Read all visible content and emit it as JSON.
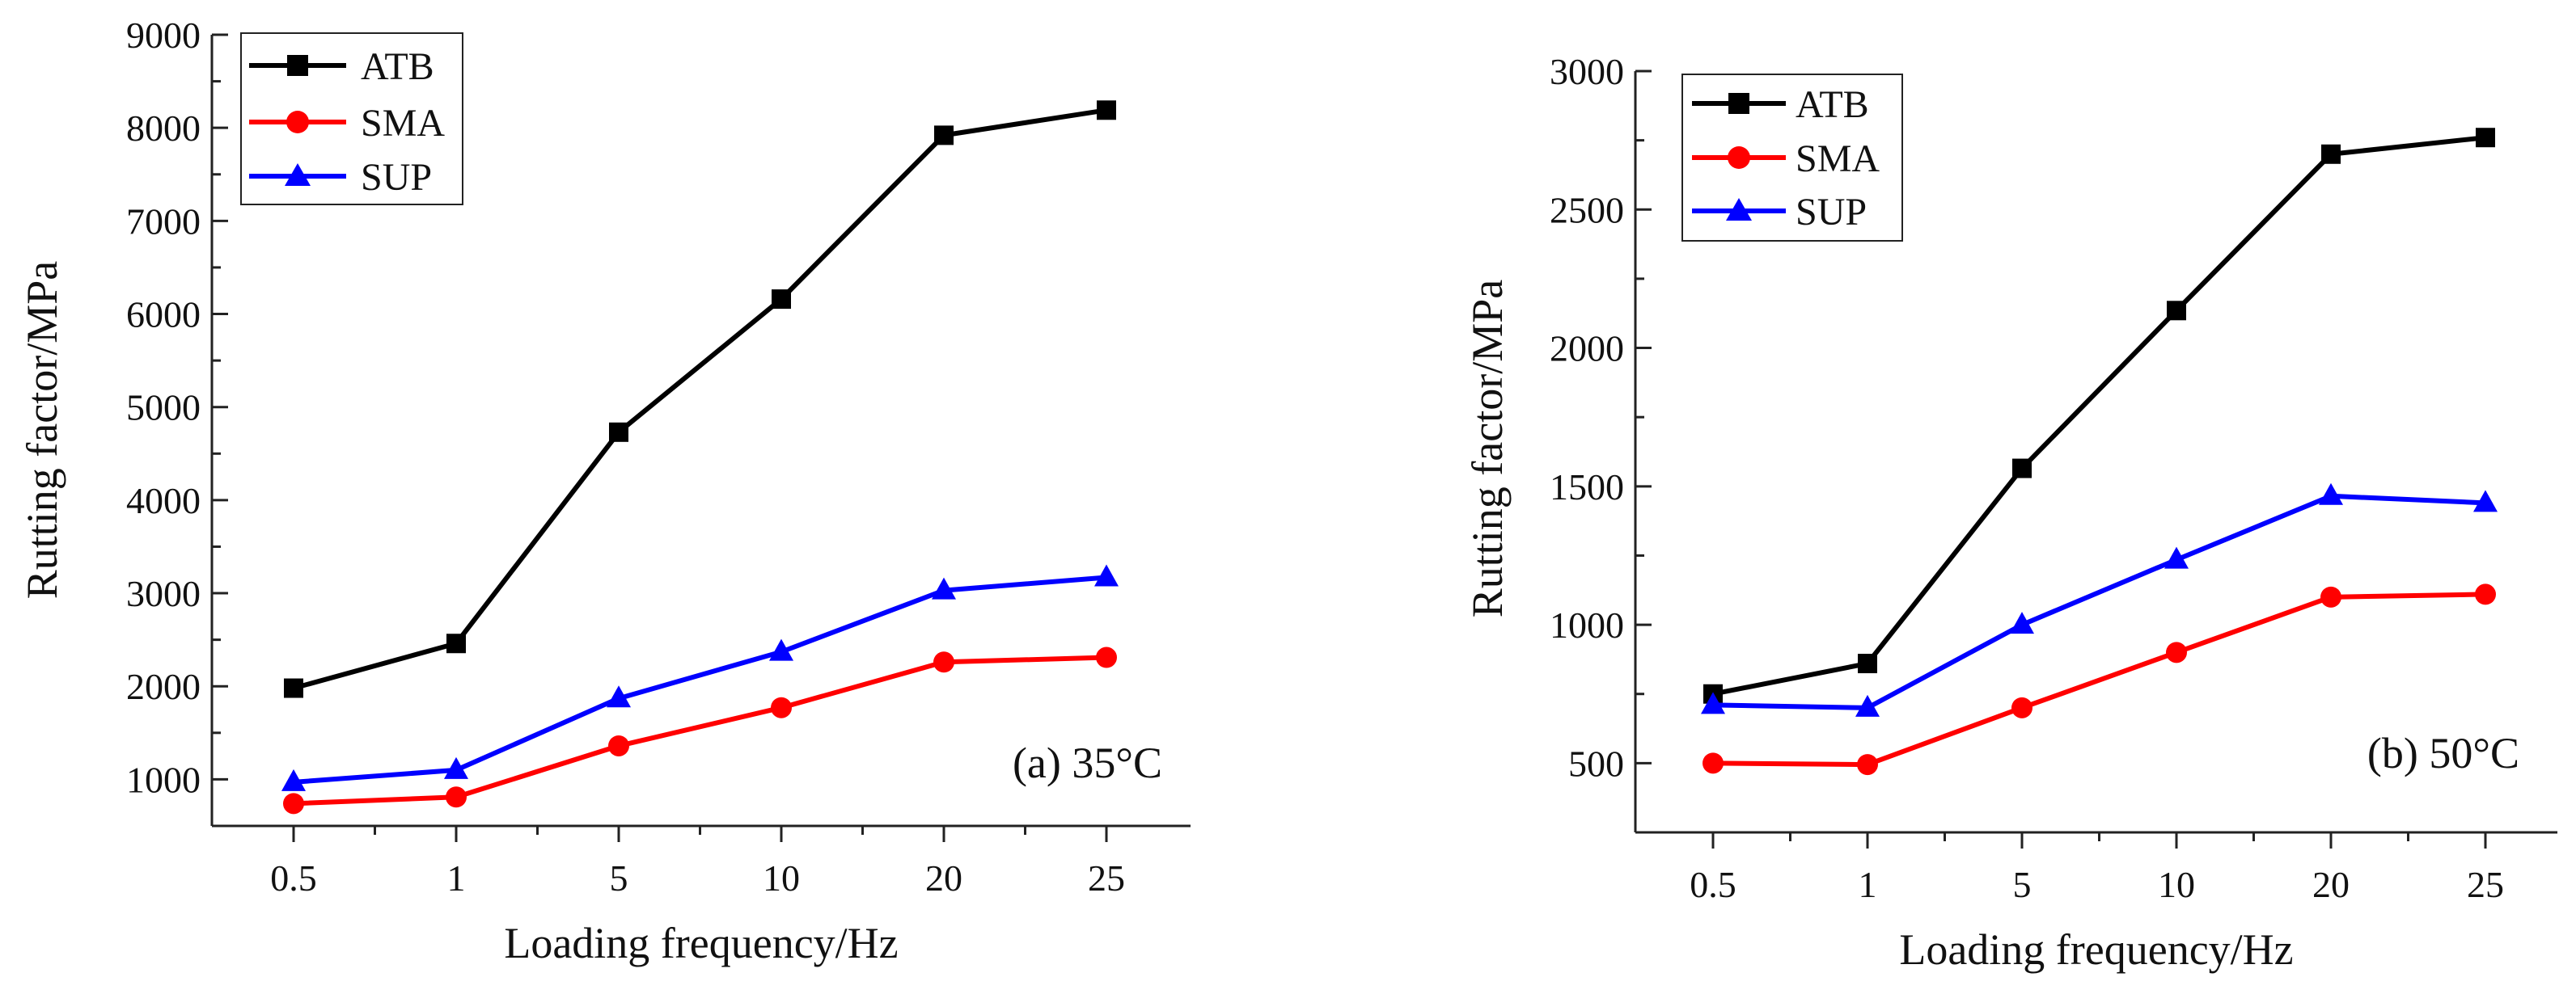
{
  "chart_data": [
    {
      "type": "line",
      "panel_label": "(a)  35°C",
      "xlabel": "Loading frequency/Hz",
      "ylabel": "Rutting factor/MPa",
      "categories": [
        "0.5",
        "1",
        "5",
        "10",
        "20",
        "25"
      ],
      "ylim": [
        500,
        9000
      ],
      "yticks": [
        1000,
        2000,
        3000,
        4000,
        5000,
        6000,
        7000,
        8000,
        9000
      ],
      "legend_position": "top-left",
      "grid": false,
      "series": [
        {
          "name": "ATB",
          "color": "#000000",
          "marker": "square",
          "values": [
            1980,
            2460,
            4730,
            6160,
            7920,
            8190
          ]
        },
        {
          "name": "SMA",
          "color": "#ff0000",
          "marker": "circle",
          "values": [
            740,
            810,
            1360,
            1770,
            2260,
            2310
          ]
        },
        {
          "name": "SUP",
          "color": "#0000ff",
          "marker": "triangle",
          "values": [
            970,
            1100,
            1870,
            2370,
            3030,
            3170
          ]
        }
      ]
    },
    {
      "type": "line",
      "panel_label": "(b)  50°C",
      "xlabel": "Loading frequency/Hz",
      "ylabel": "Rutting factor/MPa",
      "categories": [
        "0.5",
        "1",
        "5",
        "10",
        "20",
        "25"
      ],
      "ylim": [
        250,
        3000
      ],
      "yticks": [
        500,
        1000,
        1500,
        2000,
        2500,
        3000
      ],
      "legend_position": "top-left",
      "grid": false,
      "series": [
        {
          "name": "ATB",
          "color": "#000000",
          "marker": "square",
          "values": [
            750,
            860,
            1565,
            2135,
            2700,
            2760
          ]
        },
        {
          "name": "SMA",
          "color": "#ff0000",
          "marker": "circle",
          "values": [
            500,
            495,
            700,
            900,
            1100,
            1110
          ]
        },
        {
          "name": "SUP",
          "color": "#0000ff",
          "marker": "triangle",
          "values": [
            710,
            700,
            1000,
            1235,
            1465,
            1440
          ]
        }
      ]
    }
  ]
}
